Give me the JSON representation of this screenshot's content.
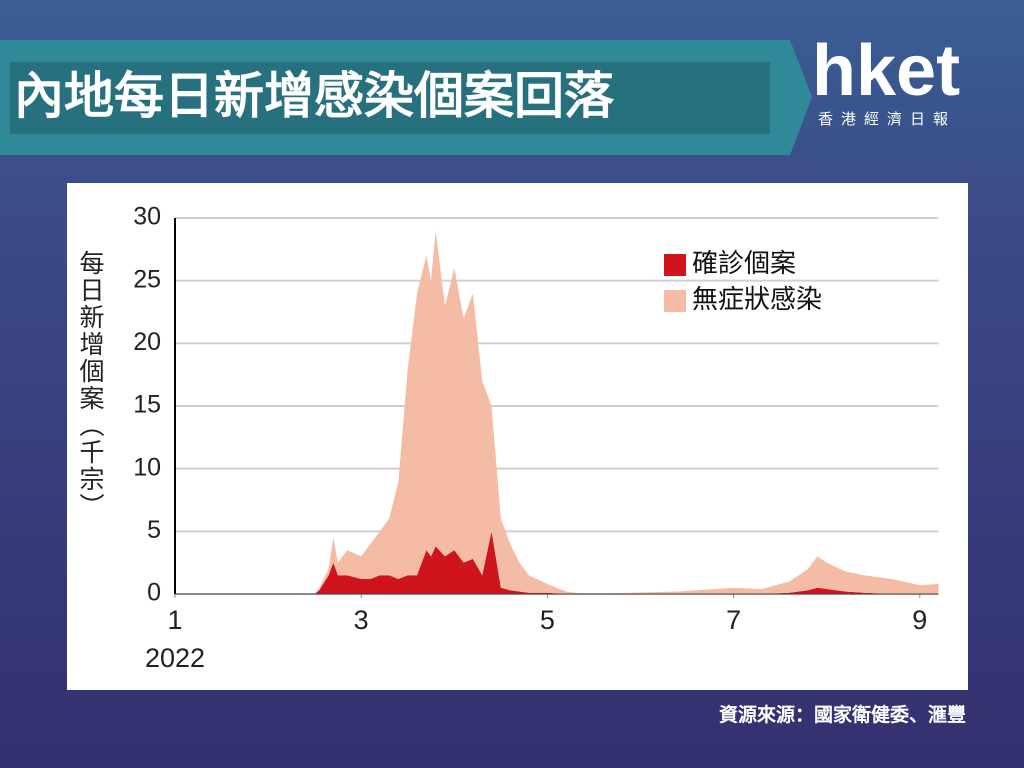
{
  "header": {
    "title": "內地每日新增感染個案回落",
    "logo": "hket",
    "logo_subtitle": "香港經濟日報"
  },
  "chart_data": {
    "type": "stacked-area",
    "y_axis_label": "每日新增個案（千宗）",
    "x_year_label": "2022",
    "x": [
      1,
      2.5,
      2.55,
      2.65,
      2.7,
      2.75,
      2.85,
      3.0,
      3.1,
      3.2,
      3.3,
      3.4,
      3.5,
      3.6,
      3.7,
      3.75,
      3.8,
      3.9,
      4.0,
      4.1,
      4.2,
      4.3,
      4.4,
      4.5,
      4.6,
      4.7,
      4.8,
      5.0,
      5.2,
      5.4,
      6.4,
      7.0,
      7.3,
      7.6,
      7.8,
      7.9,
      8.0,
      8.2,
      8.4,
      8.7,
      9.0,
      9.2
    ],
    "series": [
      {
        "name": "確診個案",
        "color": "#d0141c",
        "values": [
          0,
          0,
          0.3,
          1.5,
          2.5,
          1.5,
          1.5,
          1.2,
          1.2,
          1.5,
          1.5,
          1.2,
          1.5,
          1.5,
          3.5,
          3,
          3.8,
          3,
          3.5,
          2.5,
          2.8,
          1.5,
          5,
          0.5,
          0.3,
          0.2,
          0.1,
          0.1,
          0,
          0,
          0,
          0,
          0,
          0.1,
          0.3,
          0.5,
          0.4,
          0.2,
          0.1,
          0,
          0,
          0
        ]
      },
      {
        "name": "無症狀感染",
        "color": "#f4bca5",
        "values": [
          0,
          0,
          0.2,
          0.5,
          2,
          1,
          2,
          1.8,
          2.8,
          3.5,
          4.5,
          7.8,
          16.5,
          22.5,
          23.5,
          22,
          25.2,
          20,
          22.5,
          19.5,
          21.2,
          15.5,
          10,
          5.5,
          3.7,
          2.3,
          1.4,
          0.7,
          0.2,
          0,
          0.2,
          0.5,
          0.4,
          0.9,
          1.7,
          2.5,
          2.1,
          1.6,
          1.4,
          1.2,
          0.7,
          0.8
        ]
      }
    ],
    "xlim": [
      1,
      9.2
    ],
    "xticks": [
      1,
      3,
      5,
      7,
      9
    ],
    "ylim": [
      0,
      30
    ],
    "yticks": [
      0,
      5,
      10,
      15,
      20,
      25,
      30
    ],
    "grid": true,
    "legend": "top-right"
  },
  "source": "資源來源：國家衛健委、滙豐"
}
